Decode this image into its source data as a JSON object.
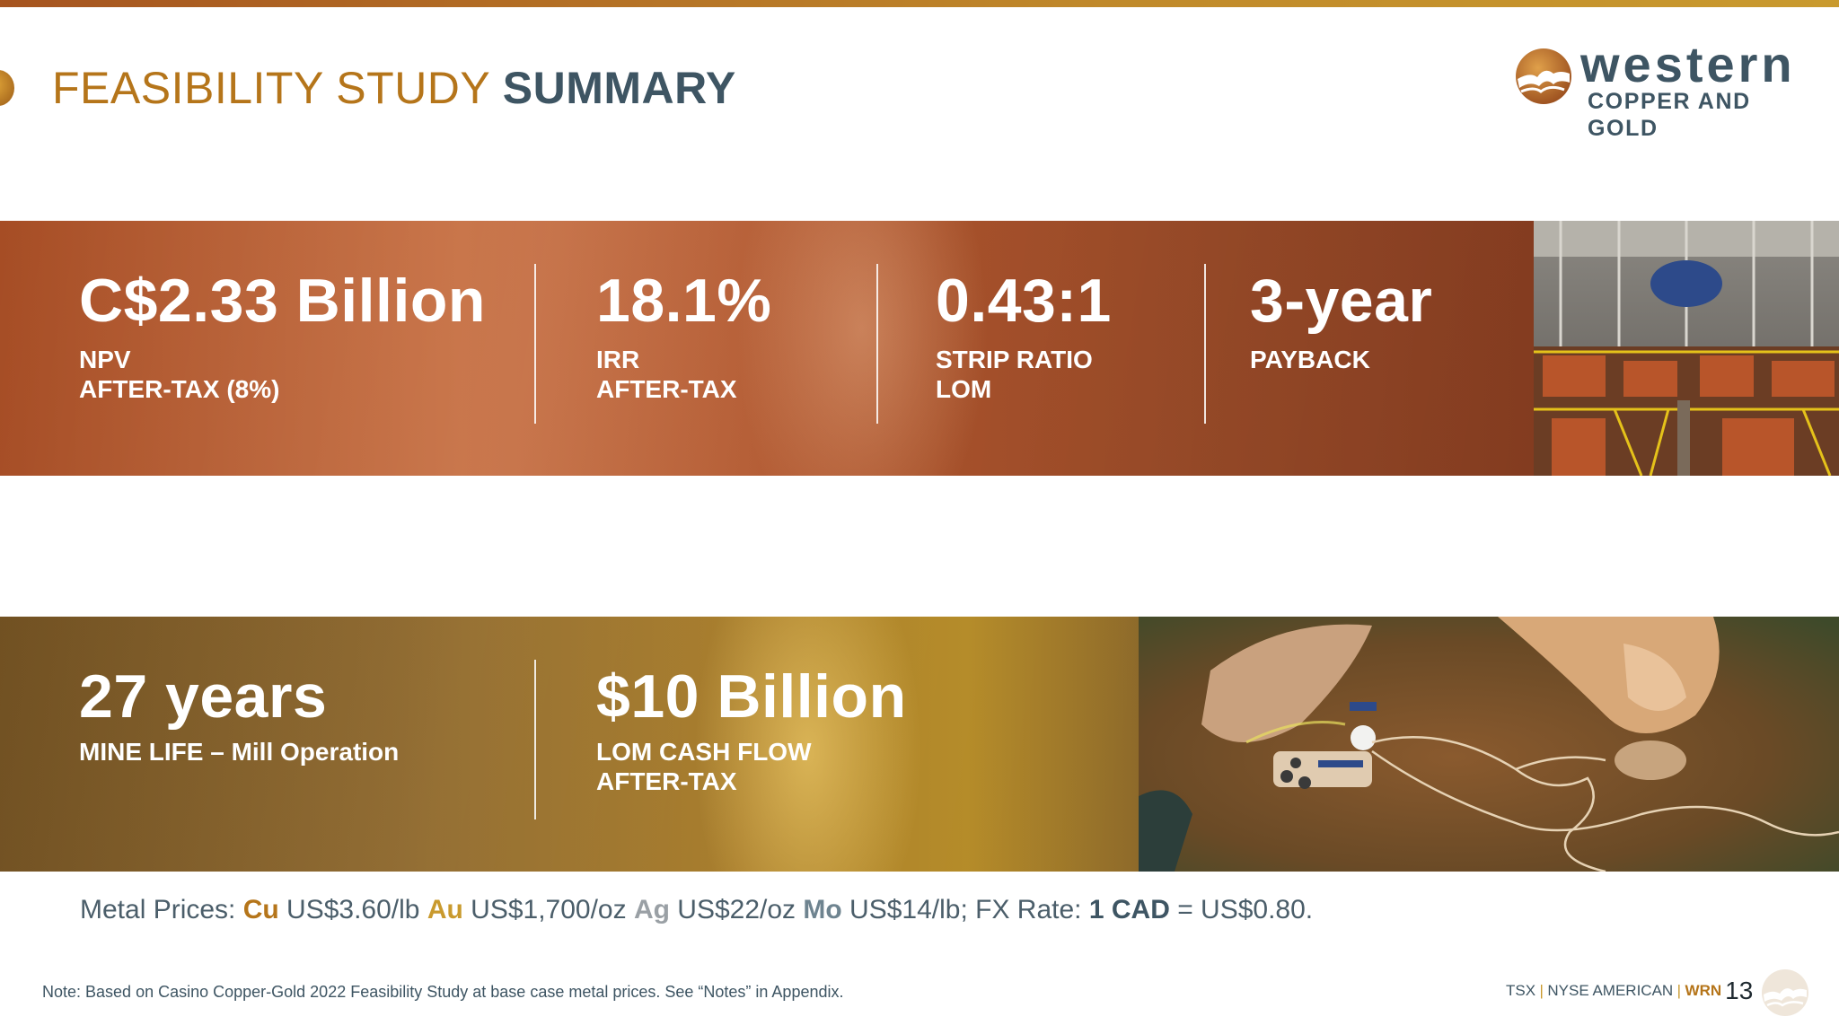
{
  "header": {
    "title_part1": "FEASIBILITY STUDY",
    "title_part2": "SUMMARY"
  },
  "logo": {
    "line1": "western",
    "line2": "COPPER AND GOLD"
  },
  "top_band": {
    "stats": [
      {
        "value": "C$2.33 Billion",
        "label_lines": [
          "NPV",
          "AFTER-TAX (8%)"
        ]
      },
      {
        "value": "18.1%",
        "label_lines": [
          "IRR",
          "AFTER-TAX"
        ]
      },
      {
        "value": "0.43:1",
        "label_lines": [
          "STRIP RATIO",
          "LOM"
        ]
      },
      {
        "value": "3-year",
        "label_lines": [
          "PAYBACK"
        ]
      }
    ]
  },
  "bottom_band": {
    "stats": [
      {
        "value": "27 years",
        "label_lines": [
          "MINE LIFE – Mill Operation"
        ]
      },
      {
        "value": "$10 Billion",
        "label_lines": [
          "LOM CASH FLOW",
          "AFTER-TAX"
        ]
      }
    ]
  },
  "metal_prices": {
    "prefix": "Metal Prices: ",
    "cu_symbol": "Cu",
    "cu_price": " US$3.60/lb ",
    "au_symbol": "Au",
    "au_price": " US$1,700/oz ",
    "ag_symbol": "Ag",
    "ag_price": " US$22/oz ",
    "mo_symbol": "Mo",
    "mo_price": " US$14/lb; FX Rate: ",
    "cad": "1 CAD",
    "fx_rate": " = US$0.80."
  },
  "footer": {
    "note": "Note: Based on Casino Copper-Gold 2022 Feasibility Study at base case metal prices. See “Notes” in Appendix.",
    "exchange1": "TSX",
    "exchange2": "NYSE AMERICAN",
    "ticker": "WRN",
    "page_number": "13"
  },
  "colors": {
    "title_gold": "#b5751a",
    "title_slate": "#3e5563",
    "band_copper": "#b6582e",
    "band_gold": "#9a7026"
  }
}
